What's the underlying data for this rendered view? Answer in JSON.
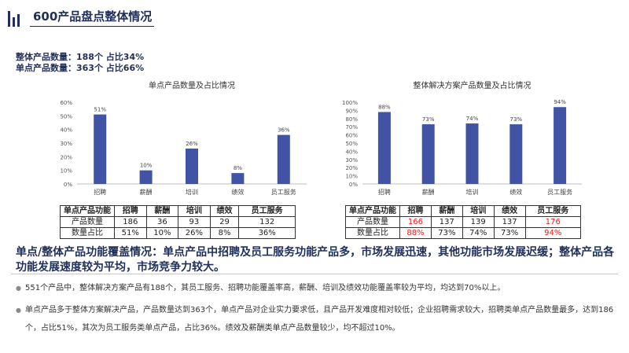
{
  "header": {
    "title": "600产品盘点整体情况"
  },
  "summary": {
    "line1": "整体产品数量：188个  占比34%",
    "line2": "单点产品数量：363个  占比66%"
  },
  "chart_data": [
    {
      "type": "bar",
      "title": "单点产品数量及占比情况",
      "categories": [
        "招聘",
        "薪酬",
        "培训",
        "绩效",
        "员工服务"
      ],
      "values": [
        51,
        10,
        26,
        8,
        36
      ],
      "value_labels": [
        "51%",
        "10%",
        "26%",
        "8%",
        "36%"
      ],
      "yticks": [
        "0%",
        "10%",
        "20%",
        "30%",
        "40%",
        "50%",
        "60%"
      ],
      "ylim": [
        0,
        60
      ],
      "bar_color": "#4053a5",
      "grid": false
    },
    {
      "type": "bar",
      "title": "整体解决方案产品数量及占比情况",
      "categories": [
        "招聘",
        "薪酬",
        "培训",
        "绩效",
        "员工服务"
      ],
      "values": [
        88,
        73,
        74,
        73,
        94
      ],
      "value_labels": [
        "88%",
        "73%",
        "74%",
        "73%",
        "94%"
      ],
      "yticks": [
        "0%",
        "10%",
        "20%",
        "30%",
        "40%",
        "50%",
        "60%",
        "70%",
        "80%",
        "90%",
        "100%"
      ],
      "ylim": [
        0,
        100
      ],
      "bar_color": "#4053a5",
      "grid": false
    }
  ],
  "table1": {
    "header": [
      "单点产品功能",
      "招聘",
      "薪酬",
      "培训",
      "绩效",
      "员工服务"
    ],
    "row1": [
      "产品数量",
      "186",
      "36",
      "93",
      "29",
      "132"
    ],
    "row2": [
      "数量占比",
      "51%",
      "10%",
      "26%",
      "8%",
      "36%"
    ]
  },
  "table2": {
    "header": [
      "单点产品功能",
      "招聘",
      "薪酬",
      "培训",
      "绩效",
      "员工服务"
    ],
    "row1": [
      "产品数量",
      "166",
      "137",
      "139",
      "137",
      "176"
    ],
    "row2": [
      "数量占比",
      "88%",
      "73%",
      "74%",
      "73%",
      "94%"
    ],
    "highlight_color": "#e02020"
  },
  "headline": "单点/整体产品功能覆盖情况：单点产品中招聘及员工服务功能产品多，市场发展迅速，其他功能市场发展迟缓；整体产品各功能发展速度较为平均，市场竞争力较大。",
  "bullets": [
    "551个产品中，整体解决方案产品有188个，其员工服务、招聘功能覆盖率高，薪酬、培训及绩效功能覆盖率较为平均，均达到70%以上。",
    "单点产品多于整体方案解决产品，产品数量达到363个，单点产品对企业实力要求低，且产品开发难度相对较低；企业招聘需求较大，招聘类单点产品数量最多，达到186个，占比51%，其次为员工服务类单点产品，占比36%。绩效及薪酬类单点产品数量较少，均不超过10%。"
  ],
  "bullet_icon": "dot-icon"
}
